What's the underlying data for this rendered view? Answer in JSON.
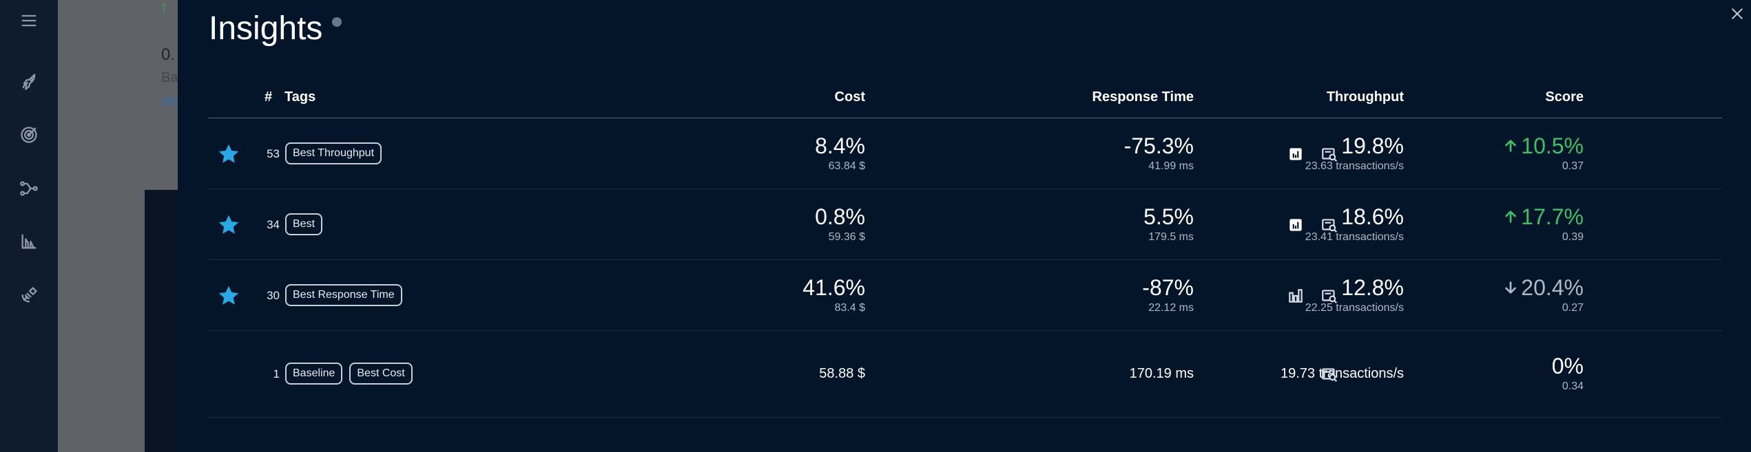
{
  "nav": {
    "icons": [
      "menu-icon",
      "rocket-icon",
      "target-icon",
      "network-icon",
      "lab-icon",
      "satellite-icon"
    ]
  },
  "background": {
    "value_fragment": "0.",
    "subtitle_fragment": "Ba",
    "link_fragment": "HID"
  },
  "panel": {
    "title": "Insights"
  },
  "table": {
    "headers": {
      "num": "#",
      "tags": "Tags",
      "cost": "Cost",
      "response_time": "Response Time",
      "throughput": "Throughput",
      "score": "Score"
    },
    "rows": [
      {
        "starred": true,
        "num": "53",
        "tags": [
          "Best Throughput"
        ],
        "cost_pct": "8.4%",
        "cost": "63.84 $",
        "rt_pct": "-75.3%",
        "rt": "41.99 ms",
        "tp_pct": "19.8%",
        "tp": "23.63 transactions/s",
        "score_pct": "10.5%",
        "score_dir": "up",
        "score": "0.37",
        "chart_filled": true
      },
      {
        "starred": true,
        "num": "34",
        "tags": [
          "Best"
        ],
        "cost_pct": "0.8%",
        "cost": "59.36 $",
        "rt_pct": "5.5%",
        "rt": "179.5 ms",
        "tp_pct": "18.6%",
        "tp": "23.41 transactions/s",
        "score_pct": "17.7%",
        "score_dir": "up",
        "score": "0.39",
        "chart_filled": true
      },
      {
        "starred": true,
        "num": "30",
        "tags": [
          "Best Response Time"
        ],
        "cost_pct": "41.6%",
        "cost": "83.4 $",
        "rt_pct": "-87%",
        "rt": "22.12 ms",
        "tp_pct": "12.8%",
        "tp": "22.25 transactions/s",
        "score_pct": "20.4%",
        "score_dir": "down",
        "score": "0.27",
        "chart_filled": false
      },
      {
        "starred": false,
        "num": "1",
        "tags": [
          "Baseline",
          "Best Cost"
        ],
        "cost": "58.88 $",
        "rt": "170.19 ms",
        "tp": "19.73 transactions/s",
        "score_pct": "0%",
        "score": "0.34"
      }
    ]
  },
  "colors": {
    "star": "#29a8e6",
    "up": "#3fc066",
    "panel_bg": "#04152a"
  }
}
